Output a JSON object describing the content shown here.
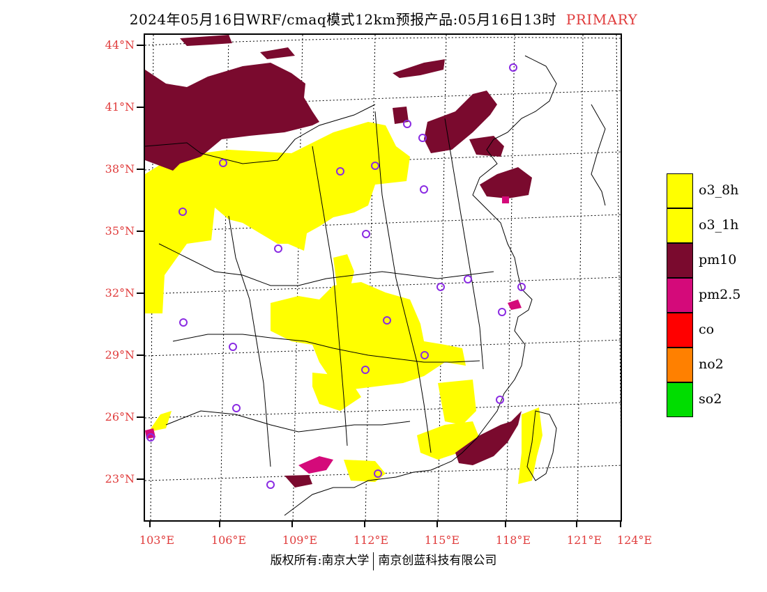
{
  "title": {
    "main": "2024年05月16日WRF/cmaq模式12km预报产品:05月16日13时",
    "tag": "PRIMARY"
  },
  "axes": {
    "lat_labels": [
      "44°N",
      "41°N",
      "38°N",
      "35°N",
      "32°N",
      "29°N",
      "26°N",
      "23°N"
    ],
    "lon_labels": [
      "103°E",
      "106°E",
      "109°E",
      "112°E",
      "115°E",
      "118°E",
      "121°E",
      "124°E"
    ]
  },
  "legend": [
    {
      "label": "o3_8h",
      "color": "#ffff00"
    },
    {
      "label": "o3_1h",
      "color": "#ffff00"
    },
    {
      "label": "pm10",
      "color": "#7a0a2e"
    },
    {
      "label": "pm2.5",
      "color": "#d40a7a"
    },
    {
      "label": "co",
      "color": "#ff0000"
    },
    {
      "label": "no2",
      "color": "#ff8000"
    },
    {
      "label": "so2",
      "color": "#00dd00"
    }
  ],
  "copyright": {
    "left": "版权所有:南京大学",
    "right": "南京创蓝科技有限公司"
  },
  "colors": {
    "axis_label": "#e03c3c",
    "ozone": "#ffff00",
    "pm10": "#7a0a2e",
    "pm25": "#d40a7a",
    "station_marker": "#8a2be2"
  }
}
